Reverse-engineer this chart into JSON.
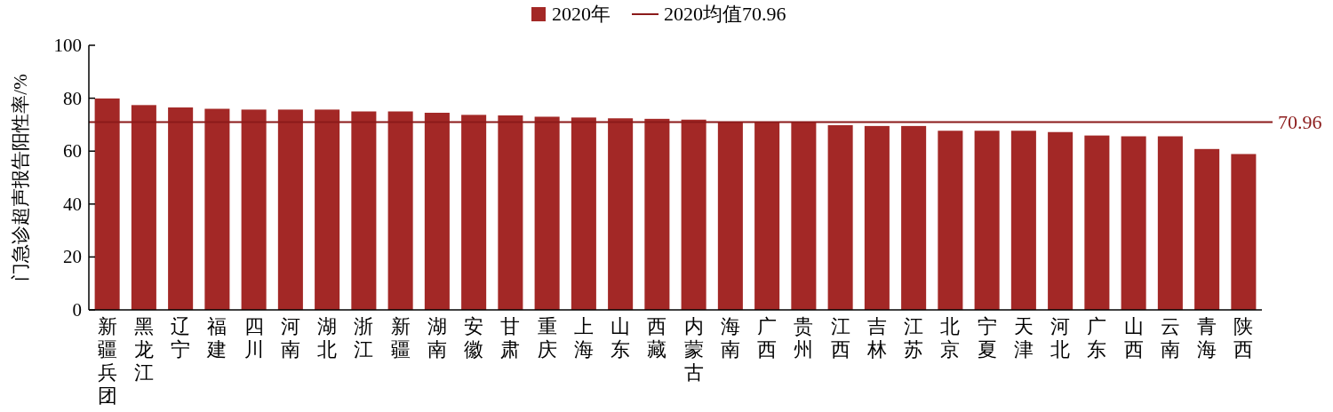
{
  "chart_data": {
    "type": "bar",
    "categories": [
      "新疆兵团",
      "黑龙江",
      "辽宁",
      "福建",
      "四川",
      "河南",
      "湖北",
      "浙江",
      "新疆",
      "湖南",
      "安徽",
      "甘肃",
      "重庆",
      "上海",
      "山东",
      "西藏",
      "内蒙古",
      "海南",
      "广西",
      "贵州",
      "江西",
      "吉林",
      "江苏",
      "北京",
      "宁夏",
      "天津",
      "河北",
      "广东",
      "山西",
      "云南",
      "青海",
      "陕西"
    ],
    "series": [
      {
        "name": "2020年",
        "color": "#a32826",
        "values": [
          79.9,
          77.4,
          76.5,
          76.0,
          75.7,
          75.7,
          75.7,
          75.0,
          75.0,
          74.5,
          73.7,
          73.5,
          73.0,
          72.7,
          72.4,
          72.2,
          71.9,
          71.0,
          71.0,
          71.0,
          69.8,
          69.5,
          69.5,
          67.7,
          67.7,
          67.7,
          67.2,
          65.9,
          65.6,
          65.6,
          60.8,
          58.9
        ]
      }
    ],
    "ylabel": "门急诊超声报告阳性率/%",
    "ylim": [
      0,
      100
    ],
    "yticks": [
      0,
      20,
      40,
      60,
      80,
      100
    ],
    "ref_lines": [
      {
        "axis": "y",
        "value": 70.96,
        "label": "70.96",
        "color": "#8b1a1a"
      }
    ],
    "annotations": [
      "2020均值70.96"
    ],
    "legend": "top",
    "grid": false
  }
}
